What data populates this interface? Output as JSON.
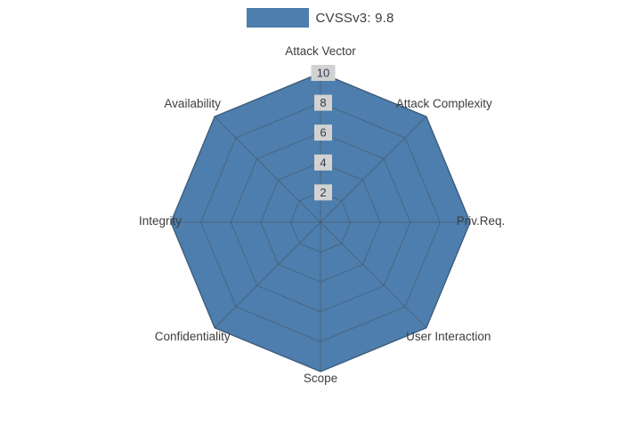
{
  "legend": {
    "label": "CVSSv3: 9.8"
  },
  "colors": {
    "fill": "#4d7ead",
    "stroke": "#3f6c99",
    "grid": "rgba(70,70,70,0.45)",
    "tick_chip": "#d2d2d2",
    "tick_text": "#2f3b4c",
    "axis_label": "#3d3d3d"
  },
  "chart_data": {
    "type": "radar",
    "title": "CVSSv3: 9.8",
    "score": "9.8",
    "categories": [
      "Attack Vector",
      "Attack Complexity",
      "Priv.Req.",
      "User Interaction",
      "Scope",
      "Confidentiality",
      "Integrity",
      "Availability"
    ],
    "series": [
      {
        "name": "CVSSv3: 9.8",
        "values": [
          10,
          10,
          10,
          10,
          10,
          10,
          10,
          10
        ]
      }
    ],
    "max": 10,
    "ticks": [
      2,
      4,
      6,
      8,
      10
    ],
    "grid": true,
    "legend_position": "top"
  }
}
